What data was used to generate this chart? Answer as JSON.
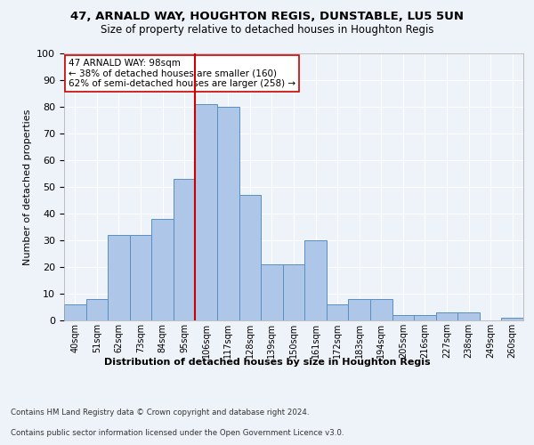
{
  "title1": "47, ARNALD WAY, HOUGHTON REGIS, DUNSTABLE, LU5 5UN",
  "title2": "Size of property relative to detached houses in Houghton Regis",
  "xlabel": "Distribution of detached houses by size in Houghton Regis",
  "ylabel": "Number of detached properties",
  "categories": [
    "40sqm",
    "51sqm",
    "62sqm",
    "73sqm",
    "84sqm",
    "95sqm",
    "106sqm",
    "117sqm",
    "128sqm",
    "139sqm",
    "150sqm",
    "161sqm",
    "172sqm",
    "183sqm",
    "194sqm",
    "205sqm",
    "216sqm",
    "227sqm",
    "238sqm",
    "249sqm",
    "260sqm"
  ],
  "values": [
    6,
    8,
    32,
    32,
    38,
    53,
    81,
    80,
    47,
    21,
    21,
    30,
    6,
    8,
    8,
    2,
    2,
    3,
    3,
    0,
    1
  ],
  "bar_color": "#aec6e8",
  "bar_edge_color": "#5a8fc0",
  "vline_x": 5.5,
  "vline_color": "#cc0000",
  "annotation_text": "47 ARNALD WAY: 98sqm\n← 38% of detached houses are smaller (160)\n62% of semi-detached houses are larger (258) →",
  "annotation_box_color": "#ffffff",
  "annotation_box_edge": "#cc0000",
  "footer1": "Contains HM Land Registry data © Crown copyright and database right 2024.",
  "footer2": "Contains public sector information licensed under the Open Government Licence v3.0.",
  "ylim": [
    0,
    100
  ],
  "yticks": [
    0,
    10,
    20,
    30,
    40,
    50,
    60,
    70,
    80,
    90,
    100
  ],
  "bg_color": "#eef2f9",
  "grid_color": "#ffffff",
  "title1_fontsize": 9.5,
  "title2_fontsize": 8.5
}
